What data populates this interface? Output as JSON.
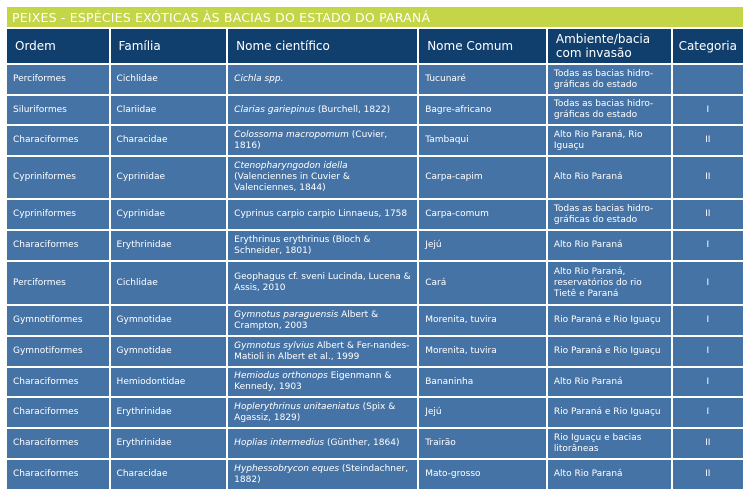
{
  "title": "PEIXES - ESPÉCIES EXÓTICAS ÀS BACIAS DO ESTADO DO PARANÁ",
  "colors": {
    "title_bar": "#c4d548",
    "header": "#103f6e",
    "row": "#4573a6"
  },
  "headers": [
    "Ordem",
    "Família",
    "Nome científico",
    "Nome Comum",
    "Ambiente/bacia com invasão",
    "Categoria"
  ],
  "rows": [
    {
      "ordem": "Perciformes",
      "familia": "Cichlidae",
      "sci_italic": "Cichla spp.",
      "sci_rest": "",
      "comum": "Tucunaré",
      "ambiente": "Todas as bacias hidro-gráficas do estado",
      "categoria": ""
    },
    {
      "ordem": "Siluriformes",
      "familia": "Clariidae",
      "sci_italic": "Clarias gariepinus",
      "sci_rest": " (Burchell, 1822)",
      "comum": "Bagre-africano",
      "ambiente": "Todas as bacias hidro-gráficas do estado",
      "categoria": "I"
    },
    {
      "ordem": "Characiformes",
      "familia": "Characidae",
      "sci_italic": "Colossoma macropomum",
      "sci_rest": " (Cuvier, 1816)",
      "comum": "Tambaqui",
      "ambiente": "Alto Rio Paraná, Rio Iguaçu",
      "categoria": "II"
    },
    {
      "ordem": "Cypriniformes",
      "familia": "Cyprinidae",
      "sci_italic": "Ctenopharyngodon idella",
      "sci_rest": " (Valenciennes in Cuvier & Valenciennes, 1844)",
      "comum": "Carpa-capim",
      "ambiente": "Alto Rio Paraná",
      "categoria": "II"
    },
    {
      "ordem": "Cypriniformes",
      "familia": "Cyprinidae",
      "sci_italic": "",
      "sci_rest": "Cyprinus carpio carpio Linnaeus, 1758",
      "comum": "Carpa-comum",
      "ambiente": "Todas as bacias hidro-gráficas do estado",
      "categoria": "II"
    },
    {
      "ordem": "Characiformes",
      "familia": "Erythrinidae",
      "sci_italic": "",
      "sci_rest": "Erythrinus erythrinus (Bloch & Schneider, 1801)",
      "comum": "Jejú",
      "ambiente": "Alto Rio Paraná",
      "categoria": "I"
    },
    {
      "ordem": "Perciformes",
      "familia": "Cichlidae",
      "sci_italic": "",
      "sci_rest": "Geophagus cf. sveni Lucinda, Lucena & Assis, 2010",
      "comum": "Cará",
      "ambiente": "Alto Rio Paraná, reservatórios do rio Tietê e Paraná",
      "categoria": "I"
    },
    {
      "ordem": "Gymnotiformes",
      "familia": "Gymnotidae",
      "sci_italic": "Gymnotus paraguensis",
      "sci_rest": " Albert & Crampton, 2003",
      "comum": "Morenita, tuvira",
      "ambiente": "Rio Paraná e Rio Iguaçu",
      "categoria": "I"
    },
    {
      "ordem": "Gymnotiformes",
      "familia": "Gymnotidae",
      "sci_italic": "Gymnotus sylvius",
      "sci_rest": " Albert & Fer-nandes-Matioli in Albert et al., 1999",
      "comum": "Morenita, tuvira",
      "ambiente": "Rio Paraná e Rio Iguaçu",
      "categoria": "I"
    },
    {
      "ordem": "Characiformes",
      "familia": "Hemiodontidae",
      "sci_italic": "Hemiodus orthonops",
      "sci_rest": " Eigenmann & Kennedy, 1903",
      "comum": "Bananinha",
      "ambiente": "Alto Rio Paraná",
      "categoria": "I"
    },
    {
      "ordem": "Characiformes",
      "familia": "Erythrinidae",
      "sci_italic": "Hoplerythrinus unitaeniatus",
      "sci_rest": " (Spix & Agassiz, 1829)",
      "comum": "Jejú",
      "ambiente": "Rio Paraná e Rio Iguaçu",
      "categoria": "I"
    },
    {
      "ordem": "Characiformes",
      "familia": "Erythrinidae",
      "sci_italic": "Hoplias intermedius",
      "sci_rest": " (Günther, 1864)",
      "comum": "Trairão",
      "ambiente": "Rio Iguaçu e bacias litorâneas",
      "categoria": "II"
    },
    {
      "ordem": "Characiformes",
      "familia": "Characidae",
      "sci_italic": "Hyphessobrycon eques",
      "sci_rest": " (Steindachner, 1882)",
      "comum": "Mato-grosso",
      "ambiente": "Alto Rio Paraná",
      "categoria": "II"
    }
  ]
}
